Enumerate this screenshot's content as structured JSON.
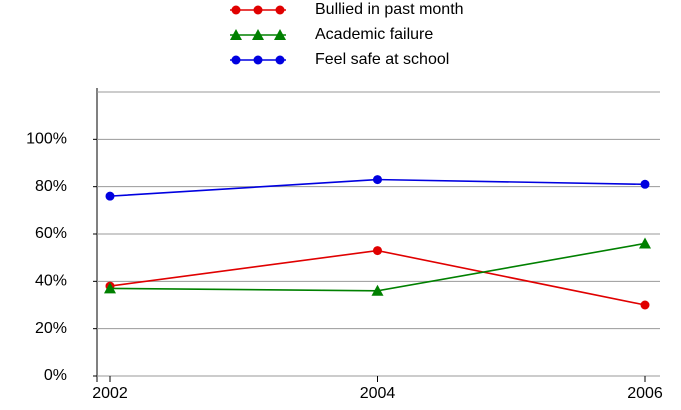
{
  "chart_data": {
    "type": "line",
    "categories": [
      "2002",
      "2004",
      "2006"
    ],
    "series": [
      {
        "name": "Bullied in past month",
        "color": "#e00000",
        "marker": "circle",
        "values": [
          38,
          53,
          30
        ]
      },
      {
        "name": "Academic failure",
        "color": "#008000",
        "marker": "triangle",
        "values": [
          37,
          36,
          56
        ]
      },
      {
        "name": "Feel safe at school",
        "color": "#0000e0",
        "marker": "circle",
        "values": [
          76,
          83,
          81
        ]
      }
    ],
    "ylim": [
      0,
      120
    ],
    "yticks": [
      {
        "value": 0,
        "label": "0%"
      },
      {
        "value": 20,
        "label": "20%"
      },
      {
        "value": 40,
        "label": "40%"
      },
      {
        "value": 60,
        "label": "60%"
      },
      {
        "value": 80,
        "label": "80%"
      },
      {
        "value": 100,
        "label": "100%"
      }
    ],
    "grid": true
  }
}
